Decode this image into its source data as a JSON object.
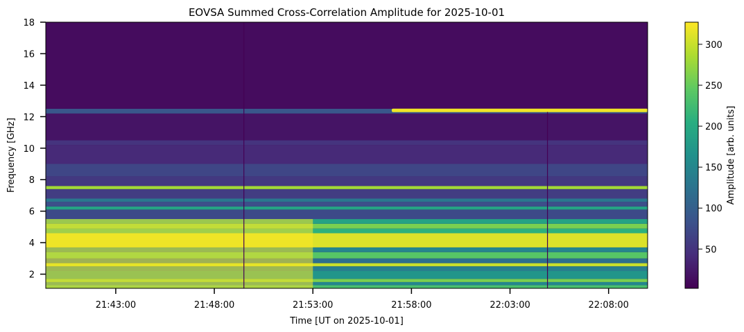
{
  "chart_data": {
    "type": "heatmap",
    "title": "EOVSA Summed Cross-Correlation Amplitude for 2025-10-01",
    "xlabel": "Time [UT on 2025-10-01]",
    "ylabel": "Frequency [GHz]",
    "colorbar_label": "Amplitude [arb. units]",
    "colormap": "viridis",
    "x_start": "21:39:30",
    "x_end": "22:10:00",
    "xlim_minutes_after_21h": [
      39.45,
      69.98
    ],
    "ylim": [
      1.1,
      18.0
    ],
    "clim": [
      2,
      327
    ],
    "x_ticks": [
      {
        "label": "21:43:00",
        "minute": 43
      },
      {
        "label": "21:48:00",
        "minute": 48
      },
      {
        "label": "21:53:00",
        "minute": 53
      },
      {
        "label": "21:58:00",
        "minute": 58
      },
      {
        "label": "22:03:00",
        "minute": 63
      },
      {
        "label": "22:08:00",
        "minute": 68
      }
    ],
    "y_ticks": [
      {
        "label": "2",
        "value": 2
      },
      {
        "label": "4",
        "value": 4
      },
      {
        "label": "6",
        "value": 6
      },
      {
        "label": "8",
        "value": 8
      },
      {
        "label": "10",
        "value": 10
      },
      {
        "label": "12",
        "value": 12
      },
      {
        "label": "14",
        "value": 14
      },
      {
        "label": "16",
        "value": 16
      },
      {
        "label": "18",
        "value": 18
      }
    ],
    "colorbar_ticks": [
      {
        "label": "50",
        "value": 50
      },
      {
        "label": "100",
        "value": 100
      },
      {
        "label": "150",
        "value": 150
      },
      {
        "label": "200",
        "value": 200
      },
      {
        "label": "250",
        "value": 250
      },
      {
        "label": "300",
        "value": 300
      }
    ],
    "frequency_bands": [
      {
        "f0": 1.1,
        "f1": 1.3,
        "amplitude": 230
      },
      {
        "f0": 1.3,
        "f1": 1.5,
        "amplitude": 150
      },
      {
        "f0": 1.5,
        "f1": 1.7,
        "amplitude": 260
      },
      {
        "f0": 1.7,
        "f1": 2.2,
        "amplitude": 170
      },
      {
        "f0": 2.2,
        "f1": 2.5,
        "amplitude": 140
      },
      {
        "f0": 2.5,
        "f1": 2.7,
        "amplitude": 300
      },
      {
        "f0": 2.7,
        "f1": 3.0,
        "amplitude": 120
      },
      {
        "f0": 3.0,
        "f1": 3.4,
        "amplitude": 240
      },
      {
        "f0": 3.4,
        "f1": 3.7,
        "amplitude": 150
      },
      {
        "f0": 3.7,
        "f1": 4.6,
        "amplitude": 310
      },
      {
        "f0": 4.6,
        "f1": 4.9,
        "amplitude": 210
      },
      {
        "f0": 4.9,
        "f1": 5.2,
        "amplitude": 260
      },
      {
        "f0": 5.2,
        "f1": 5.5,
        "amplitude": 190
      },
      {
        "f0": 5.5,
        "f1": 6.1,
        "amplitude": 75
      },
      {
        "f0": 6.1,
        "f1": 6.3,
        "amplitude": 190
      },
      {
        "f0": 6.3,
        "f1": 6.6,
        "amplitude": 80
      },
      {
        "f0": 6.6,
        "f1": 6.8,
        "amplitude": 130
      },
      {
        "f0": 6.8,
        "f1": 7.4,
        "amplitude": 60
      },
      {
        "f0": 7.4,
        "f1": 7.6,
        "amplitude": 280
      },
      {
        "f0": 7.6,
        "f1": 8.2,
        "amplitude": 55
      },
      {
        "f0": 8.2,
        "f1": 9.0,
        "amplitude": 70
      },
      {
        "f0": 9.0,
        "f1": 10.2,
        "amplitude": 40
      },
      {
        "f0": 10.2,
        "f1": 10.5,
        "amplitude": 50
      },
      {
        "f0": 10.5,
        "f1": 12.2,
        "amplitude": 20
      },
      {
        "f0": 12.2,
        "f1": 12.5,
        "amplitude": 90
      },
      {
        "f0": 12.5,
        "f1": 18.0,
        "amplitude": 12
      }
    ],
    "features": [
      {
        "description": "drifting bright line near 12.4 GHz",
        "t0_minute": 57,
        "t1_minute": 69.98,
        "f": 12.4,
        "amplitude": 320
      },
      {
        "description": "enhanced low-frequency emission",
        "t0_minute": 39.45,
        "t1_minute": 53,
        "f0": 1.1,
        "f1": 5.5,
        "amplitude": 327
      },
      {
        "description": "vertical data gap",
        "minute": 49.5,
        "f0": 1.1,
        "f1": 18.0,
        "amplitude": 2
      },
      {
        "description": "vertical data gap",
        "minute": 64.9,
        "f0": 1.1,
        "f1": 12.3,
        "amplitude": 2
      }
    ]
  }
}
